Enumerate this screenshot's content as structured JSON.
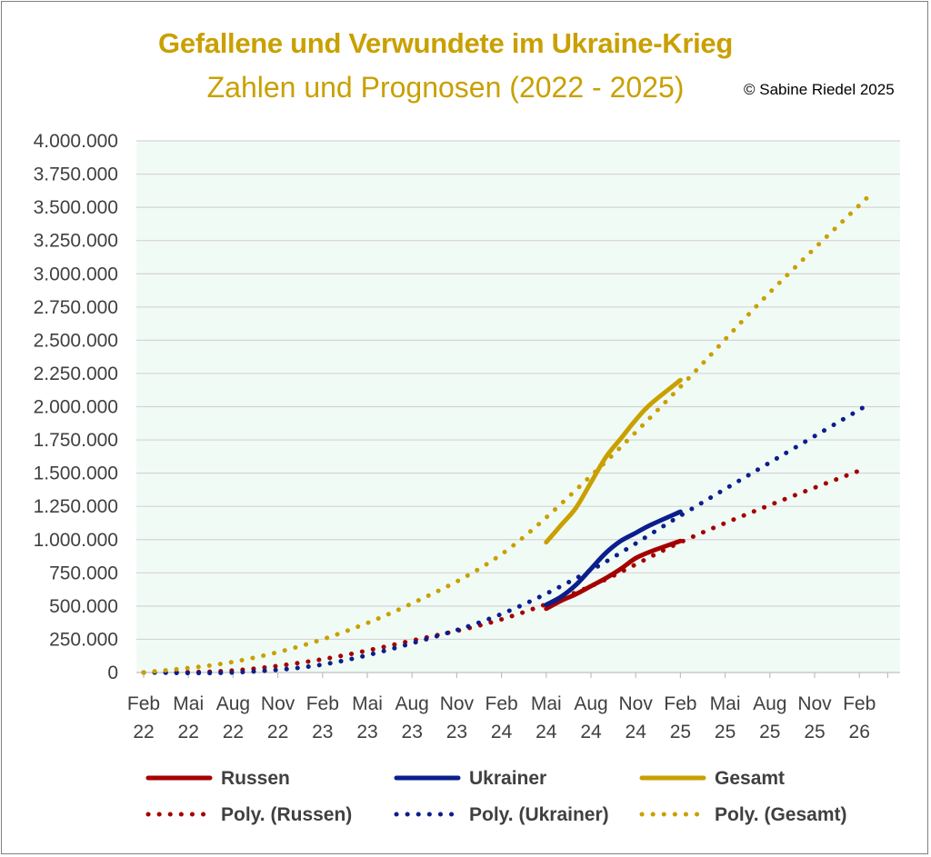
{
  "title": "Gefallene und Verwundete im Ukraine-Krieg",
  "subtitle": "Zahlen und Prognosen (2022 - 2025)",
  "copyright": "©  Sabine Riedel 2025",
  "chart_data": {
    "type": "line",
    "title": "Gefallene und Verwundete im Ukraine-Krieg",
    "subtitle": "Zahlen und Prognosen (2022 - 2025)",
    "ylim": [
      0,
      4000000
    ],
    "y_ticks": [
      "4.000.000",
      "3.750.000",
      "3.500.000",
      "3.250.000",
      "3.000.000",
      "2.750.000",
      "2.500.000",
      "2.250.000",
      "2.000.000",
      "1.750.000",
      "1.500.000",
      "1.250.000",
      "1.000.000",
      "750.000",
      "500.000",
      "250.000",
      "0"
    ],
    "y_tick_values": [
      4000000,
      3750000,
      3500000,
      3250000,
      3000000,
      2750000,
      2500000,
      2250000,
      2000000,
      1750000,
      1500000,
      1250000,
      1000000,
      750000,
      500000,
      250000,
      0
    ],
    "x_ticks": [
      {
        "month": "Feb",
        "year": "22"
      },
      {
        "month": "Mai",
        "year": "22"
      },
      {
        "month": "Aug",
        "year": "22"
      },
      {
        "month": "Nov",
        "year": "22"
      },
      {
        "month": "Feb",
        "year": "23"
      },
      {
        "month": "Mai",
        "year": "23"
      },
      {
        "month": "Aug",
        "year": "23"
      },
      {
        "month": "Nov",
        "year": "23"
      },
      {
        "month": "Feb",
        "year": "24"
      },
      {
        "month": "Mai",
        "year": "24"
      },
      {
        "month": "Aug",
        "year": "24"
      },
      {
        "month": "Nov",
        "year": "24"
      },
      {
        "month": "Feb",
        "year": "25"
      },
      {
        "month": "Mai",
        "year": "25"
      },
      {
        "month": "Aug",
        "year": "25"
      },
      {
        "month": "Nov",
        "year": "25"
      },
      {
        "month": "Feb",
        "year": "26"
      }
    ],
    "grid": true,
    "legend_position": "bottom",
    "series": [
      {
        "name": "Russen",
        "color": "#a50000",
        "style": "solid",
        "x": [
          27.0,
          28.0,
          29.0,
          30.0,
          31.0,
          32.0,
          33.0,
          34.0,
          36.0
        ],
        "y": [
          480000,
          540000,
          590000,
          650000,
          710000,
          780000,
          860000,
          910000,
          990000
        ]
      },
      {
        "name": "Ukrainer",
        "color": "#0a1e8c",
        "style": "solid",
        "x": [
          27.0,
          28.0,
          29.0,
          30.0,
          31.0,
          32.0,
          33.0,
          34.0,
          36.0
        ],
        "y": [
          510000,
          570000,
          660000,
          780000,
          900000,
          990000,
          1050000,
          1110000,
          1210000
        ]
      },
      {
        "name": "Gesamt",
        "color": "#c9a000",
        "style": "solid",
        "x": [
          27.0,
          28.0,
          29.0,
          30.0,
          31.0,
          32.0,
          33.0,
          34.0,
          36.0
        ],
        "y": [
          980000,
          1110000,
          1240000,
          1430000,
          1620000,
          1760000,
          1900000,
          2020000,
          2200000
        ]
      },
      {
        "name": "Poly. (Russen)",
        "color": "#a50000",
        "style": "dotted",
        "x": [
          0,
          6,
          12,
          18,
          24,
          30,
          36,
          42,
          48.5
        ],
        "y": [
          0,
          15000,
          100000,
          240000,
          400000,
          650000,
          980000,
          1260000,
          1540000
        ]
      },
      {
        "name": "Poly. (Ukrainer)",
        "color": "#0a1e8c",
        "style": "dotted",
        "x": [
          0,
          6,
          12,
          18,
          24,
          30,
          36,
          42,
          48.5
        ],
        "y": [
          0,
          0,
          60000,
          220000,
          440000,
          770000,
          1180000,
          1580000,
          2010000
        ]
      },
      {
        "name": "Poly. (Gesamt)",
        "color": "#c9a000",
        "style": "dotted",
        "x": [
          0,
          6,
          12,
          18,
          24,
          30,
          36,
          42,
          48.5
        ],
        "y": [
          0,
          80000,
          250000,
          520000,
          890000,
          1480000,
          2150000,
          2860000,
          3570000
        ]
      }
    ]
  }
}
